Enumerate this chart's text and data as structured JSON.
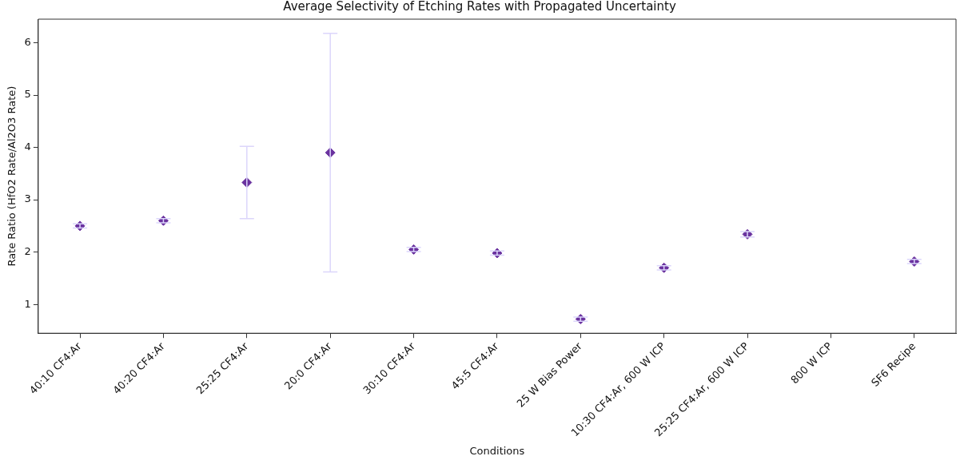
{
  "chart_data": {
    "type": "scatter",
    "title": "Average Selectivity of Etching Rates with Propagated Uncertainty",
    "xlabel": "Conditions",
    "ylabel": "Rate Ratio (HfO2 Rate/Al2O3 Rate)",
    "categories": [
      "40:10 CF4:Ar",
      "40:20 CF4:Ar",
      "25:25 CF4:Ar",
      "20:0 CF4:Ar",
      "30:10 CF4:Ar",
      "45:5 CF4:Ar",
      "25 W Bias Power",
      "10:30 CF4:Ar, 600 W ICP",
      "25:25 CF4:Ar, 600 W ICP",
      "800 W ICP",
      "SF6 Recipe"
    ],
    "values": [
      2.5,
      2.6,
      3.33,
      3.9,
      2.05,
      1.98,
      0.72,
      1.7,
      2.34,
      null,
      1.82
    ],
    "errors": [
      0.04,
      0.04,
      0.69,
      2.28,
      0.04,
      0.04,
      0.04,
      0.04,
      0.05,
      null,
      0.04
    ],
    "color": "#6a329f",
    "marker": "diamond",
    "ylim": [
      0.45,
      6.45
    ],
    "yticks": [
      1,
      2,
      3,
      4,
      5,
      6
    ],
    "grid": false,
    "legend": false
  }
}
